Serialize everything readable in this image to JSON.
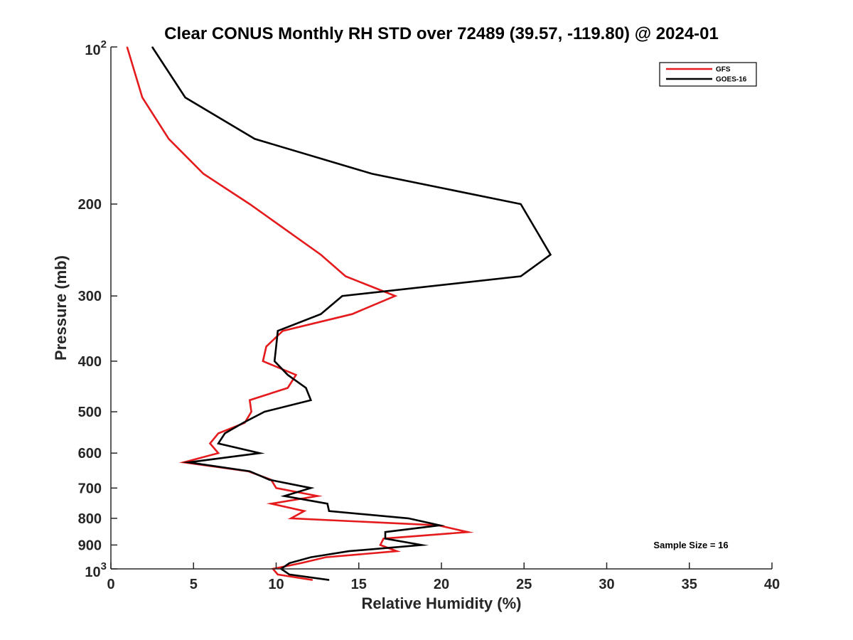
{
  "chart_data": {
    "type": "line",
    "title": "Clear CONUS Monthly RH STD over 72489 (39.57, -119.80) @ 2024-01",
    "xlabel": "Relative Humidity (%)",
    "ylabel": "Pressure (mb)",
    "xlim": [
      0,
      40
    ],
    "ylim": [
      100,
      1000
    ],
    "yscale": "log",
    "y_reversed": true,
    "grid": false,
    "legend_position": "top-right",
    "x_ticks": [
      {
        "value": 0,
        "label": "0"
      },
      {
        "value": 5,
        "label": "5"
      },
      {
        "value": 10,
        "label": "10"
      },
      {
        "value": 15,
        "label": "15"
      },
      {
        "value": 20,
        "label": "20"
      },
      {
        "value": 25,
        "label": "25"
      },
      {
        "value": 30,
        "label": "30"
      },
      {
        "value": 35,
        "label": "35"
      },
      {
        "value": 40,
        "label": "40"
      }
    ],
    "y_ticks": [
      {
        "value": 100,
        "label": "10",
        "sup": "2"
      },
      {
        "value": 200,
        "label": "200",
        "sup": ""
      },
      {
        "value": 300,
        "label": "300",
        "sup": ""
      },
      {
        "value": 400,
        "label": "400",
        "sup": ""
      },
      {
        "value": 500,
        "label": "500",
        "sup": ""
      },
      {
        "value": 600,
        "label": "600",
        "sup": ""
      },
      {
        "value": 700,
        "label": "700",
        "sup": ""
      },
      {
        "value": 800,
        "label": "800",
        "sup": ""
      },
      {
        "value": 900,
        "label": "900",
        "sup": ""
      },
      {
        "value": 1000,
        "label": "10",
        "sup": "3"
      }
    ],
    "annotation": "Sample Size = 16",
    "series": [
      {
        "name": "GFS",
        "color": "#e41a1c",
        "points": [
          [
            0.98,
            100
          ],
          [
            1.9,
            125
          ],
          [
            3.5,
            150
          ],
          [
            5.6,
            175
          ],
          [
            8.4,
            200
          ],
          [
            12.7,
            250
          ],
          [
            14.2,
            275
          ],
          [
            17.2,
            300
          ],
          [
            14.6,
            325
          ],
          [
            10.4,
            350
          ],
          [
            9.4,
            375
          ],
          [
            9.2,
            400
          ],
          [
            11.2,
            425
          ],
          [
            10.7,
            450
          ],
          [
            8.4,
            475
          ],
          [
            8.5,
            500
          ],
          [
            8.1,
            525
          ],
          [
            6.5,
            550
          ],
          [
            6.0,
            575
          ],
          [
            6.5,
            600
          ],
          [
            4.4,
            625
          ],
          [
            8.3,
            650
          ],
          [
            9.7,
            675
          ],
          [
            10.0,
            700
          ],
          [
            12.5,
            725
          ],
          [
            9.7,
            750
          ],
          [
            11.7,
            775
          ],
          [
            10.9,
            800
          ],
          [
            19.8,
            825
          ],
          [
            21.6,
            850
          ],
          [
            16.5,
            875
          ],
          [
            16.3,
            900
          ],
          [
            17.3,
            925
          ],
          [
            13.0,
            950
          ],
          [
            11.5,
            975
          ],
          [
            9.8,
            1000
          ],
          [
            10.1,
            1025
          ],
          [
            12.2,
            1050
          ]
        ]
      },
      {
        "name": "GOES-16",
        "color": "#000000",
        "points": [
          [
            2.5,
            100
          ],
          [
            4.5,
            125
          ],
          [
            8.7,
            150
          ],
          [
            15.8,
            175
          ],
          [
            24.8,
            200
          ],
          [
            26.6,
            250
          ],
          [
            24.8,
            275
          ],
          [
            14.0,
            300
          ],
          [
            12.7,
            325
          ],
          [
            10.1,
            350
          ],
          [
            10.0,
            375
          ],
          [
            9.9,
            400
          ],
          [
            10.7,
            425
          ],
          [
            11.8,
            450
          ],
          [
            12.1,
            475
          ],
          [
            9.3,
            500
          ],
          [
            8.0,
            525
          ],
          [
            6.9,
            550
          ],
          [
            6.5,
            575
          ],
          [
            9.0,
            600
          ],
          [
            4.7,
            625
          ],
          [
            8.4,
            650
          ],
          [
            9.6,
            675
          ],
          [
            12.1,
            700
          ],
          [
            10.5,
            725
          ],
          [
            13.1,
            750
          ],
          [
            13.2,
            775
          ],
          [
            18.0,
            800
          ],
          [
            19.9,
            825
          ],
          [
            16.6,
            850
          ],
          [
            16.6,
            875
          ],
          [
            18.8,
            900
          ],
          [
            14.4,
            925
          ],
          [
            12.1,
            950
          ],
          [
            10.8,
            975
          ],
          [
            10.3,
            1000
          ],
          [
            10.8,
            1025
          ],
          [
            13.2,
            1050
          ]
        ]
      }
    ]
  }
}
